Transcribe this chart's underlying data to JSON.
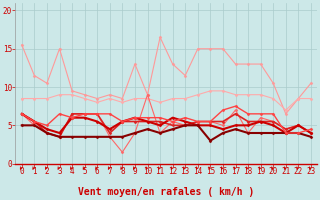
{
  "background_color": "#cce8e8",
  "grid_color": "#aacccc",
  "x_label": "Vent moyen/en rafales ( km/h )",
  "x_ticks": [
    0,
    1,
    2,
    3,
    4,
    5,
    6,
    7,
    8,
    9,
    10,
    11,
    12,
    13,
    14,
    15,
    16,
    17,
    18,
    19,
    20,
    21,
    22,
    23
  ],
  "ylim": [
    0,
    21
  ],
  "xlim": [
    -0.5,
    23.5
  ],
  "yticks": [
    0,
    5,
    10,
    15,
    20
  ],
  "series": [
    {
      "color": "#ff9999",
      "lw": 0.8,
      "marker": "D",
      "ms": 1.5,
      "data": [
        15.5,
        11.5,
        10.5,
        15.0,
        9.5,
        9.0,
        8.5,
        9.0,
        8.5,
        13.0,
        9.0,
        16.5,
        13.0,
        11.5,
        15.0,
        15.0,
        15.0,
        13.0,
        13.0,
        13.0,
        10.5,
        6.5,
        8.5,
        10.5
      ]
    },
    {
      "color": "#ffaaaa",
      "lw": 0.8,
      "marker": "D",
      "ms": 1.5,
      "data": [
        8.5,
        8.5,
        8.5,
        9.0,
        9.0,
        8.5,
        8.0,
        8.5,
        8.0,
        8.5,
        8.5,
        8.0,
        8.5,
        8.5,
        9.0,
        9.5,
        9.5,
        9.0,
        9.0,
        9.0,
        8.5,
        7.0,
        8.5,
        8.5
      ]
    },
    {
      "color": "#ff6666",
      "lw": 0.8,
      "marker": "D",
      "ms": 1.5,
      "data": [
        6.5,
        5.0,
        4.0,
        3.5,
        6.5,
        6.5,
        6.5,
        3.5,
        1.5,
        4.0,
        9.0,
        4.0,
        5.5,
        5.0,
        5.5,
        5.5,
        5.0,
        7.0,
        4.0,
        6.0,
        5.5,
        4.5,
        5.0,
        4.0
      ]
    },
    {
      "color": "#dd2222",
      "lw": 1.2,
      "marker": "D",
      "ms": 1.5,
      "data": [
        6.5,
        5.5,
        4.0,
        3.5,
        6.5,
        6.5,
        6.5,
        4.0,
        5.5,
        5.5,
        5.5,
        5.5,
        5.0,
        5.0,
        5.5,
        5.5,
        5.5,
        6.5,
        5.5,
        5.5,
        5.5,
        4.5,
        5.0,
        4.0
      ]
    },
    {
      "color": "#cc0000",
      "lw": 1.5,
      "marker": "D",
      "ms": 1.5,
      "data": [
        6.5,
        5.5,
        4.5,
        4.0,
        6.0,
        6.0,
        5.5,
        4.5,
        5.5,
        6.0,
        5.5,
        5.0,
        6.0,
        5.5,
        5.0,
        5.0,
        4.5,
        5.0,
        5.0,
        5.5,
        5.0,
        4.0,
        5.0,
        4.0
      ]
    },
    {
      "color": "#880000",
      "lw": 1.5,
      "marker": "D",
      "ms": 1.5,
      "data": [
        5.0,
        5.0,
        4.0,
        3.5,
        3.5,
        3.5,
        3.5,
        3.5,
        3.5,
        4.0,
        4.5,
        4.0,
        4.5,
        5.0,
        5.0,
        3.0,
        4.0,
        4.5,
        4.0,
        4.0,
        4.0,
        4.0,
        4.0,
        3.5
      ]
    },
    {
      "color": "#ff4444",
      "lw": 1.0,
      "marker": "D",
      "ms": 1.5,
      "data": [
        6.5,
        5.5,
        5.0,
        6.5,
        6.0,
        6.5,
        6.5,
        6.5,
        5.5,
        6.0,
        6.0,
        6.0,
        5.5,
        6.0,
        5.5,
        5.5,
        7.0,
        7.5,
        6.5,
        6.5,
        6.5,
        4.0,
        4.0,
        4.5
      ]
    }
  ],
  "arrow_color": "#cc0000",
  "spine_color": "#cc0000",
  "tick_label_color": "#cc0000",
  "axis_label_color": "#cc0000",
  "tick_label_fontsize": 5.5,
  "xlabel_fontsize": 7
}
